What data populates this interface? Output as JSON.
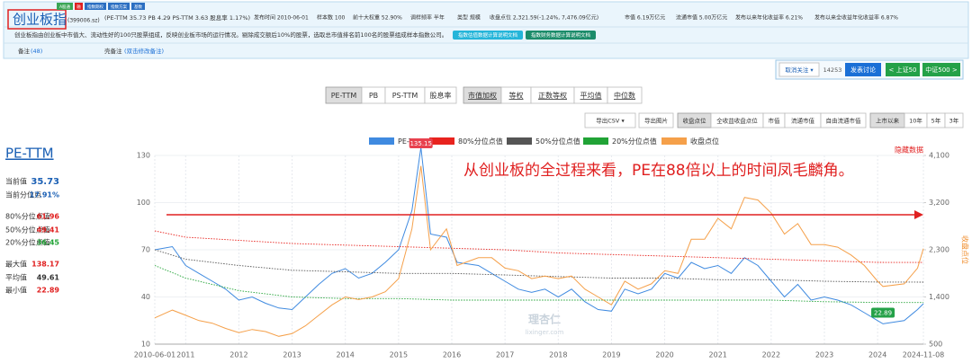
{
  "header": {
    "title": "创业板指",
    "code": "(399006.sz)",
    "badges": [
      "A股通",
      "融",
      "指数期权",
      "指数方案",
      "基数"
    ],
    "valuation": "(PE-TTM 35.73 PB 4.29 PS-TTM 3.63 股息率 1.17%)",
    "info": [
      "发布时间 2010-06-01",
      "样本数 100",
      "前十大权重 52.90%",
      "调样频率 半年",
      "类型 规模",
      "收盘点位 2,321.59(-1.24%, 7,476.09亿元)",
      "市值 6.19万亿元",
      "流通市值 5.00万亿元",
      "发布以来年化收益率 6.21%",
      "发布以来全收益年化收益率 6.87%"
    ],
    "description": "创业板指由创业板中市值大、流动性好的100只股票组成，反映创业板市场的运行情况。剔除成交额后10%的股票，选取总市值排名前100名的股票组成样本指数公司。",
    "doc_buttons": [
      "指数估值数据计算说明文档",
      "指数财务数据计算说明文档"
    ],
    "notes_label": "备注",
    "notes_count": "(48)",
    "shell_notes_label": "壳备注",
    "shell_notes_hint": "(双击修改备注)"
  },
  "actions": {
    "unfollow": "取消关注 ▾",
    "followers": "14253",
    "discuss": "发表讨论",
    "prev": "< 上证50",
    "next": "中证500 >"
  },
  "metric_tabs": [
    "PE-TTM",
    "PB",
    "PS-TTM",
    "股息率"
  ],
  "weight_tabs": [
    "市值加权",
    "等权",
    "正数等权",
    "平均值",
    "中位数"
  ],
  "toolbar": {
    "export_csv": "导出CSV ▾",
    "export_image": "导出图片",
    "price_options": [
      "收盘点位",
      "全收益收盘点位",
      "市值",
      "流通市值",
      "自由流通市值"
    ],
    "ranges": [
      "上市以来",
      "10年",
      "5年",
      "3年"
    ]
  },
  "stats": {
    "title": "PE-TTM",
    "rows": [
      {
        "label": "当前值",
        "value": "35.73"
      },
      {
        "label": "当前分位点",
        "value": "17.91%"
      },
      {
        "label": "80%分位点值",
        "value": "61.96"
      },
      {
        "label": "50%分位点值",
        "value": "49.41"
      },
      {
        "label": "20%分位点值",
        "value": "36.45"
      },
      {
        "label": "最大值",
        "value": "138.17"
      },
      {
        "label": "平均值",
        "value": "49.61"
      },
      {
        "label": "最小值",
        "value": "22.89"
      }
    ]
  },
  "chart_data": {
    "type": "line",
    "annotation": "从创业板的全过程来看，PE在88倍以上的时间凤毛麟角。",
    "hide_data": "隐藏数据",
    "y2_label": "收盘点位",
    "watermark": [
      "理杏仁",
      "lixinger.com"
    ],
    "grid": true,
    "x": [
      2010.42,
      2010.75,
      2011.0,
      2011.25,
      2011.5,
      2011.75,
      2012.0,
      2012.25,
      2012.5,
      2012.75,
      2013.0,
      2013.25,
      2013.5,
      2013.75,
      2014.0,
      2014.25,
      2014.5,
      2014.75,
      2015.0,
      2015.25,
      2015.42,
      2015.6,
      2015.9,
      2016.1,
      2016.5,
      2016.75,
      2017.0,
      2017.25,
      2017.5,
      2017.75,
      2018.0,
      2018.25,
      2018.5,
      2018.75,
      2019.0,
      2019.25,
      2019.5,
      2019.75,
      2020.0,
      2020.25,
      2020.5,
      2020.75,
      2021.0,
      2021.25,
      2021.5,
      2021.75,
      2022.0,
      2022.25,
      2022.5,
      2022.75,
      2023.0,
      2023.25,
      2023.5,
      2023.75,
      2024.0,
      2024.1,
      2024.5,
      2024.75,
      2024.86
    ],
    "series": [
      {
        "name": "PE-TTM",
        "color": "#3f8ae0",
        "values": [
          70,
          72,
          60,
          55,
          50,
          45,
          38,
          40,
          36,
          33,
          32,
          40,
          48,
          55,
          58,
          52,
          55,
          62,
          70,
          95,
          135.15,
          80,
          78,
          62,
          60,
          55,
          50,
          45,
          43,
          45,
          40,
          45,
          37,
          32,
          31,
          45,
          42,
          45,
          55,
          52,
          62,
          58,
          60,
          55,
          65,
          60,
          50,
          40,
          48,
          38,
          40,
          38,
          35,
          30,
          25,
          22.89,
          25,
          32,
          35.73
        ]
      },
      {
        "name": "80%分位点值",
        "color": "#e8231e",
        "style": "dotted",
        "x": [
          2010.42,
          2011,
          2012,
          2013,
          2014,
          2015,
          2016,
          2017,
          2018,
          2019,
          2020,
          2021,
          2022,
          2023,
          2024,
          2024.86
        ],
        "values": [
          82,
          78,
          76,
          74,
          73,
          72,
          71,
          70,
          68,
          67,
          66,
          65,
          64,
          63,
          62,
          61.96
        ]
      },
      {
        "name": "50%分位点值",
        "color": "#555555",
        "style": "dotted",
        "x": [
          2010.42,
          2011,
          2012,
          2013,
          2014,
          2015,
          2016,
          2017,
          2018,
          2019,
          2020,
          2021,
          2022,
          2023,
          2024,
          2024.86
        ],
        "values": [
          70,
          64,
          60,
          57,
          56,
          55,
          55,
          54,
          53,
          52,
          52,
          51,
          51,
          50,
          49.5,
          49.41
        ]
      },
      {
        "name": "20%分位点值",
        "color": "#21a336",
        "style": "dotted",
        "x": [
          2010.42,
          2011,
          2012,
          2013,
          2014,
          2015,
          2016,
          2017,
          2018,
          2019,
          2020,
          2021,
          2022,
          2023,
          2024,
          2024.86
        ],
        "values": [
          60,
          52,
          44,
          40,
          39,
          39,
          38,
          38,
          38,
          38,
          38,
          38,
          38,
          37,
          36.5,
          36.45
        ]
      },
      {
        "name": "收盘点位",
        "color": "#f5a04a",
        "axis": "y2",
        "values": [
          1000,
          1150,
          1050,
          950,
          900,
          800,
          720,
          780,
          740,
          650,
          700,
          850,
          1050,
          1250,
          1400,
          1350,
          1400,
          1500,
          1750,
          2700,
          3900,
          2300,
          2700,
          2000,
          2150,
          2150,
          1950,
          1900,
          1750,
          1800,
          1750,
          1800,
          1550,
          1400,
          1250,
          1700,
          1550,
          1650,
          1900,
          1850,
          2500,
          2500,
          2900,
          2700,
          3300,
          3250,
          3000,
          2600,
          2800,
          2400,
          2400,
          2350,
          2200,
          2000,
          1700,
          1600,
          1650,
          1950,
          2321.59
        ]
      }
    ],
    "xlim": [
      2010.42,
      2024.86
    ],
    "xticks": [
      {
        "value": 2010.42,
        "label": "2010-06-01"
      },
      2011,
      2012,
      2013,
      2014,
      2015,
      2016,
      2017,
      2018,
      2019,
      2020,
      2021,
      2022,
      2023,
      2024,
      {
        "value": 2024.86,
        "label": "2024-11-08"
      }
    ],
    "ylim": [
      10,
      130
    ],
    "yticks": [
      10,
      40,
      70,
      100,
      130
    ],
    "y2lim": [
      500,
      4100
    ],
    "y2ticks": [
      500,
      {
        "value": 1400,
        "label": "1,400"
      },
      {
        "value": 2300,
        "label": "2,300"
      },
      {
        "value": 3200,
        "label": "3,200"
      },
      {
        "value": 4100,
        "label": "4,100"
      }
    ]
  }
}
